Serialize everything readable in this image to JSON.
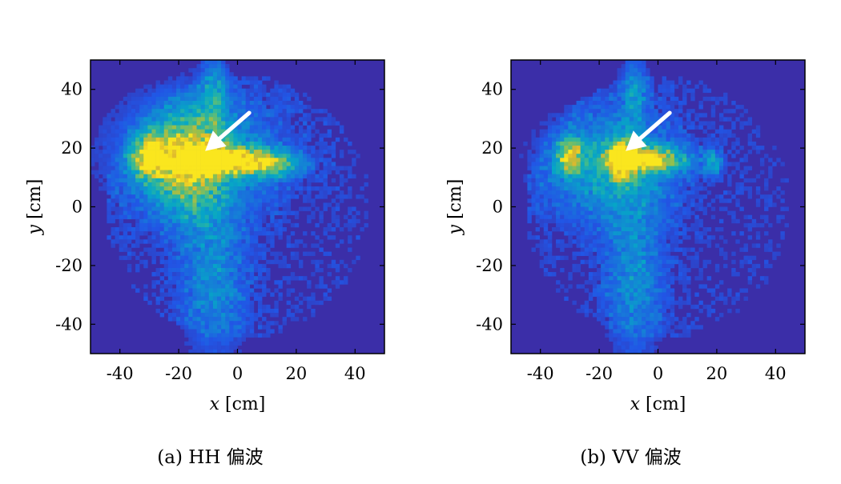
{
  "colors": {
    "background_field": "#3b2ea8",
    "frame": "#000000",
    "arrow": "#ffffff"
  },
  "chart_data": [
    {
      "type": "heatmap",
      "panel": "a",
      "caption": "(a) HH 偏波",
      "xlabel_var": "x",
      "xlabel_unit": " [cm]",
      "ylabel_var": "y",
      "ylabel_unit": " [cm]",
      "xlim": [
        -50,
        50
      ],
      "ylim": [
        -50,
        50
      ],
      "xticks": [
        -40,
        -20,
        0,
        20,
        40
      ],
      "yticks": [
        -40,
        -20,
        0,
        20,
        40
      ],
      "colormap": "parula",
      "arrow": {
        "tail": [
          4,
          32
        ],
        "head": [
          -11,
          19
        ]
      },
      "blobs": [
        {
          "x": -5,
          "y": 16,
          "sx": 11,
          "sy": 3,
          "v": 1.0
        },
        {
          "x": -30,
          "y": 17,
          "sx": 4,
          "sy": 5,
          "v": 0.75
        },
        {
          "x": -17,
          "y": 15,
          "sx": 8,
          "sy": 12,
          "v": 0.55
        },
        {
          "x": -15,
          "y": 18,
          "sx": 20,
          "sy": 14,
          "v": 0.35
        },
        {
          "x": -8,
          "y": -25,
          "sx": 8,
          "sy": 20,
          "v": 0.28
        },
        {
          "x": -8,
          "y": 40,
          "sx": 3,
          "sy": 10,
          "v": 0.3
        },
        {
          "x": 12,
          "y": 14,
          "sx": 7,
          "sy": 3,
          "v": 0.45
        }
      ]
    },
    {
      "type": "heatmap",
      "panel": "b",
      "caption": "(b) VV 偏波",
      "xlabel_var": "x",
      "xlabel_unit": " [cm]",
      "ylabel_var": "y",
      "ylabel_unit": " [cm]",
      "xlim": [
        -50,
        50
      ],
      "ylim": [
        -50,
        50
      ],
      "xticks": [
        -40,
        -20,
        0,
        20,
        40
      ],
      "yticks": [
        -40,
        -20,
        0,
        20,
        40
      ],
      "colormap": "parula",
      "arrow": {
        "tail": [
          4,
          32
        ],
        "head": [
          -11,
          19
        ]
      },
      "blobs": [
        {
          "x": -12,
          "y": 16,
          "sx": 3,
          "sy": 4,
          "v": 1.0
        },
        {
          "x": -3,
          "y": 16,
          "sx": 9,
          "sy": 3,
          "v": 0.7
        },
        {
          "x": -30,
          "y": 17,
          "sx": 3,
          "sy": 4,
          "v": 0.7
        },
        {
          "x": -17,
          "y": 14,
          "sx": 16,
          "sy": 13,
          "v": 0.38
        },
        {
          "x": -8,
          "y": -25,
          "sx": 7,
          "sy": 20,
          "v": 0.28
        },
        {
          "x": -8,
          "y": 40,
          "sx": 3,
          "sy": 10,
          "v": 0.3
        },
        {
          "x": 19,
          "y": 15,
          "sx": 2,
          "sy": 3,
          "v": 0.35
        }
      ]
    }
  ]
}
